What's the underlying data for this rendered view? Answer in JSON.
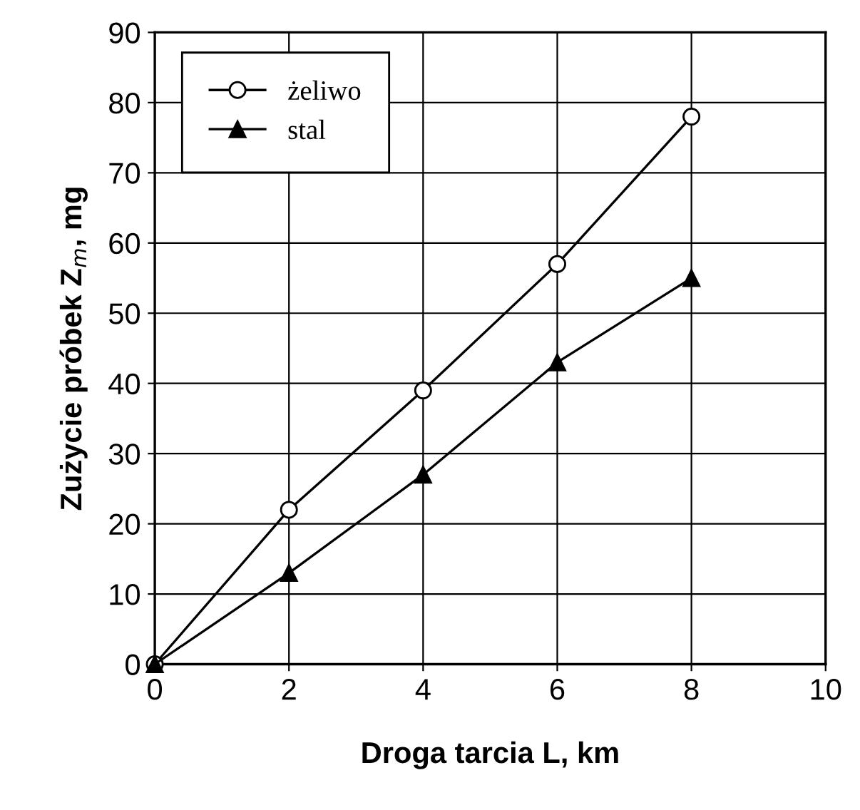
{
  "chart_data": {
    "type": "line",
    "xlabel": "Droga tarcia L, km",
    "ylabel": "Zużycie próbek Z$_{m}$, mg",
    "x": [
      0,
      2,
      4,
      6,
      8
    ],
    "series": [
      {
        "name": "żeliwo",
        "color": "#000000",
        "marker": "circle",
        "values": [
          0,
          22,
          39,
          57,
          78
        ]
      },
      {
        "name": "stal",
        "color": "#000000",
        "marker": "triangle",
        "values": [
          0,
          13,
          27,
          43,
          55
        ]
      }
    ],
    "xlim": [
      0,
      10
    ],
    "xticks": [
      0,
      2,
      4,
      6,
      8,
      10
    ],
    "ylim": [
      0,
      90
    ],
    "yticks": [
      0,
      10,
      20,
      30,
      40,
      50,
      60,
      70,
      80,
      90
    ],
    "grid": true,
    "legend": "top left",
    "line_style": "solid"
  }
}
